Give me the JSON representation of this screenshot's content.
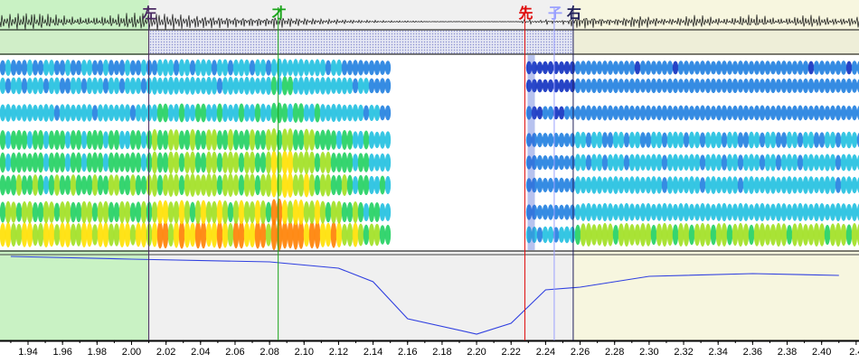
{
  "markers": [
    {
      "label": "左",
      "t": 2.01,
      "color": "#4b2a63"
    },
    {
      "label": "才",
      "t": 2.085,
      "color": "#1aa51a"
    },
    {
      "label": "先",
      "t": 2.228,
      "color": "#e01010"
    },
    {
      "label": "子",
      "t": 2.245,
      "color": "#9aa0ff"
    },
    {
      "label": "右",
      "t": 2.256,
      "color": "#20205a"
    }
  ],
  "timeline": {
    "start": 1.93,
    "end": 2.41,
    "ticks": [
      "1.94",
      "1.96",
      "1.98",
      "2.00",
      "2.02",
      "2.04",
      "2.06",
      "2.08",
      "2.10",
      "2.12",
      "2.14",
      "2.16",
      "2.18",
      "2.20",
      "2.22",
      "2.24",
      "2.26",
      "2.28",
      "2.30",
      "2.32",
      "2.34",
      "2.36",
      "2.38",
      "2.40",
      "2.4"
    ]
  },
  "regions": {
    "left_selection": {
      "start": 1.93,
      "end": 2.01,
      "color": "#c9f2c4"
    },
    "right_selection": {
      "start": 2.256,
      "end": 2.41,
      "color": "#f7f6df"
    }
  },
  "colors": {
    "curve": "#2f3fe0",
    "waveform": "#111111",
    "spectrogram_low": "#1030c0",
    "spectrogram_mid": "#20d060",
    "spectrogram_high": "#ffe000",
    "spectrogram_peak": "#ff5000"
  }
}
